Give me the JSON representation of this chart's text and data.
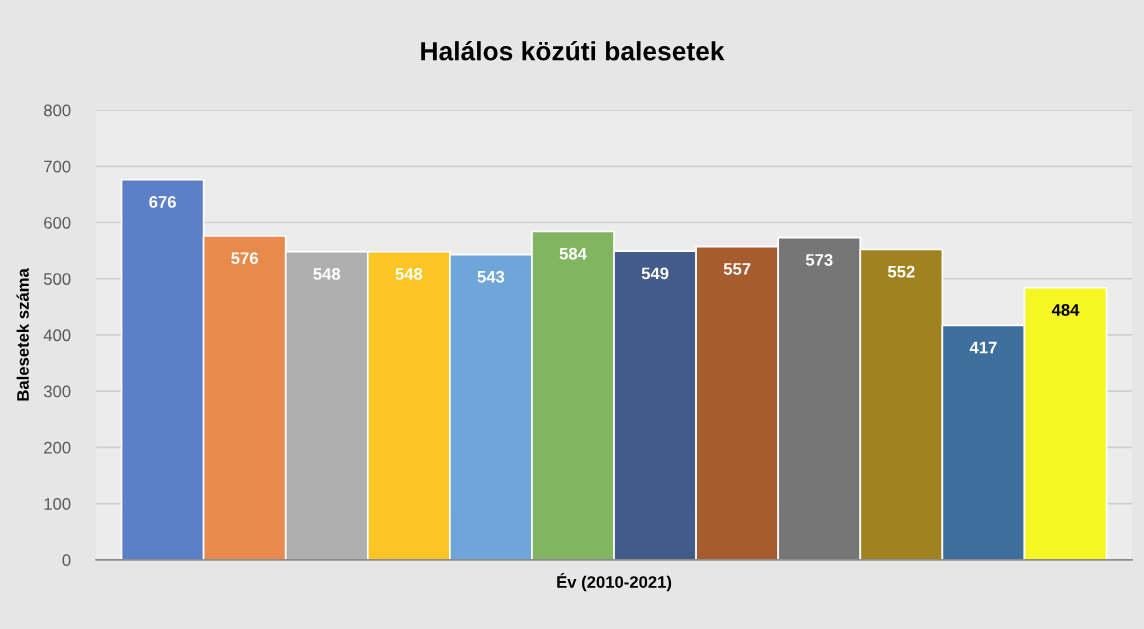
{
  "chart_data": {
    "type": "bar",
    "title": "Halálos közúti balesetek",
    "xlabel": "Év (2010-2021)",
    "ylabel": "Balesetek száma",
    "categories": [
      null,
      null,
      null,
      null,
      null,
      null,
      null,
      null,
      null,
      null,
      null,
      null
    ],
    "values": [
      676,
      576,
      548,
      548,
      543,
      584,
      549,
      557,
      573,
      552,
      417,
      484
    ],
    "colors": [
      "#5b80c8",
      "#e88a4c",
      "#afafaf",
      "#fbc523",
      "#6fa5d8",
      "#82b560",
      "#425b89",
      "#a65c2e",
      "#767676",
      "#a18220",
      "#3e6e9c",
      "#f6f624"
    ],
    "ylim": [
      0,
      800
    ],
    "yticks": [
      0,
      100,
      200,
      300,
      400,
      500,
      600,
      700,
      800
    ],
    "grid": "y",
    "data_labels": true,
    "legend": false
  }
}
